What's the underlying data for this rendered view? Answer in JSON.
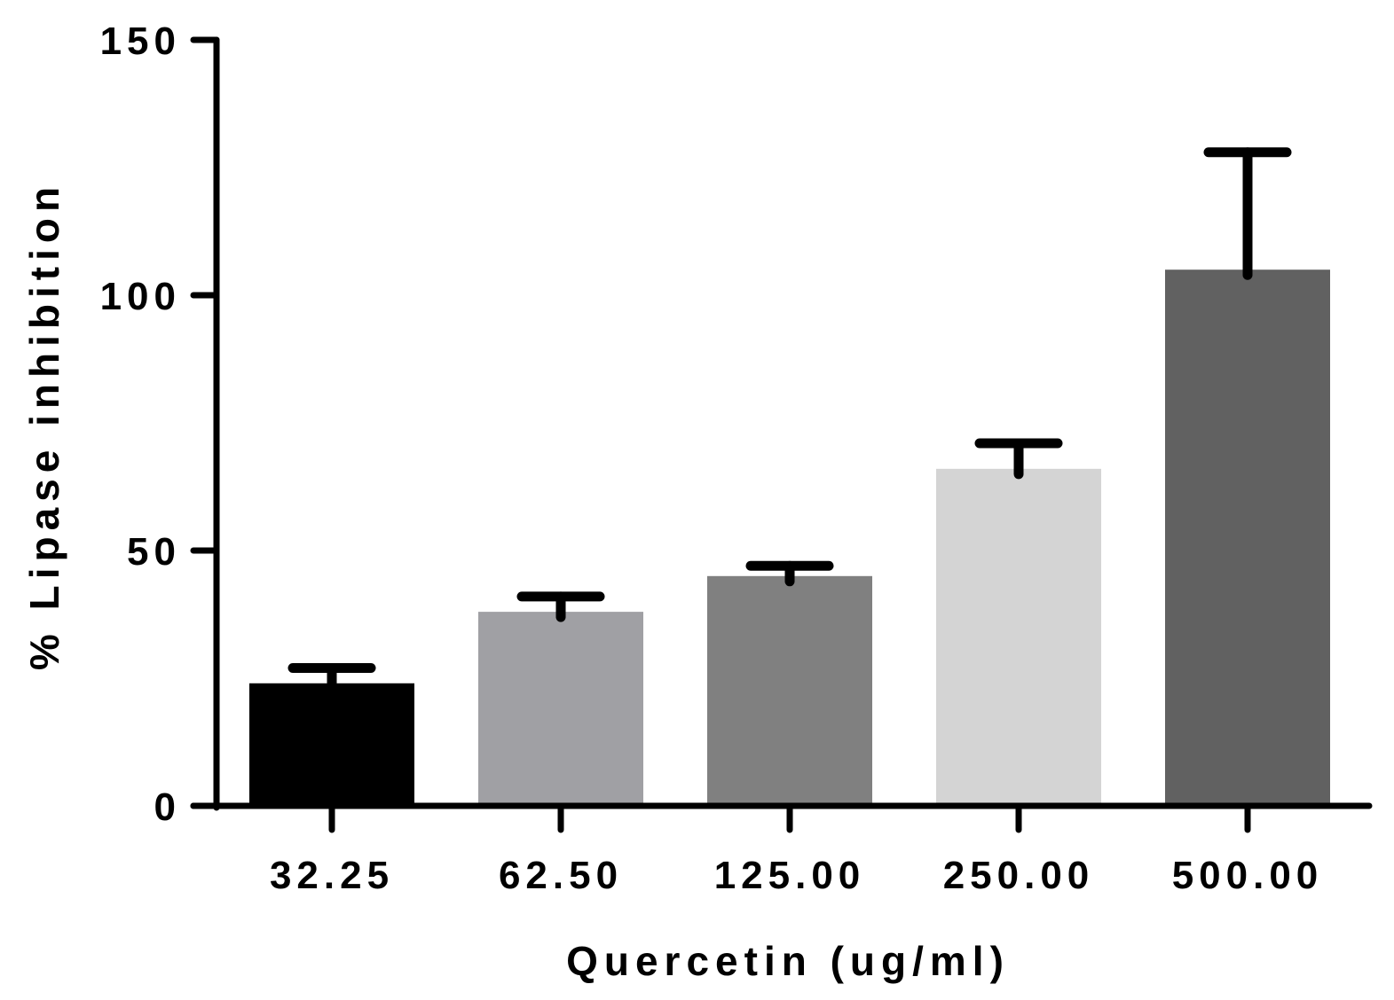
{
  "chart_data": {
    "type": "bar",
    "title": "",
    "xlabel": "Quercetin (ug/ml)",
    "ylabel": "% Lipase inhibition",
    "categories": [
      "32.25",
      "62.50",
      "125.00",
      "250.00",
      "500.00"
    ],
    "values": [
      24,
      38,
      45,
      66,
      105
    ],
    "error_upper": [
      27,
      41,
      47,
      71,
      128
    ],
    "bar_colors": [
      "#000000",
      "#a0a0a4",
      "#808080",
      "#d4d4d4",
      "#616161"
    ],
    "ylim": [
      0,
      150
    ],
    "yticks": [
      "0",
      "50",
      "100",
      "150"
    ],
    "grid": false,
    "legend": "none"
  }
}
